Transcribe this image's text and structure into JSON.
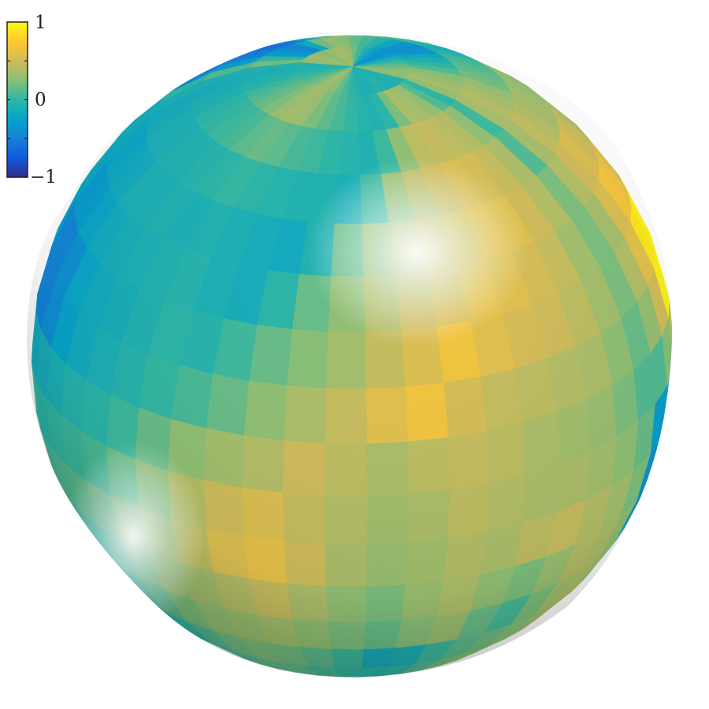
{
  "chart_data": {
    "type": "heatmap",
    "description_type": "3d-surface-sphere",
    "title": "",
    "xlabel": "",
    "ylabel": "",
    "colormap": "parula",
    "colorbar": {
      "location": "top-left",
      "clim": [
        -1,
        1
      ],
      "ticks": [
        1,
        0,
        -1
      ],
      "tick_labels": [
        "1",
        "0",
        "−1"
      ],
      "colors": [
        "#352a87",
        "#0f5cdd",
        "#1481d6",
        "#06a4ca",
        "#2eb7a4",
        "#87bf77",
        "#d1bb59",
        "#fec832",
        "#f9fb0e"
      ]
    },
    "grid": false,
    "surface": {
      "rows": 18,
      "cols": 24,
      "values_note_removed": true,
      "values": [
        [
          0.3,
          0.28,
          0.25,
          0.2,
          0.15,
          0.05,
          -0.05,
          -0.15,
          -0.3,
          -0.4,
          -0.35,
          -0.25,
          -0.1,
          0.05,
          0.2,
          0.3,
          0.35,
          0.35,
          0.3,
          0.25,
          0.3,
          0.35,
          0.3,
          0.3
        ],
        [
          0.3,
          0.35,
          0.3,
          0.25,
          0.1,
          0.0,
          -0.1,
          -0.2,
          -0.35,
          -0.4,
          -0.35,
          -0.2,
          -0.05,
          0.05,
          0.15,
          0.25,
          0.3,
          0.2,
          -0.2,
          -0.45,
          -0.4,
          -0.3,
          0.0,
          0.2
        ],
        [
          0.35,
          0.4,
          0.35,
          0.3,
          0.2,
          0.15,
          0.1,
          0.05,
          -0.05,
          -0.1,
          -0.05,
          0.05,
          0.1,
          0.2,
          0.25,
          0.3,
          0.1,
          -0.3,
          -0.55,
          -0.6,
          -0.55,
          -0.5,
          -0.3,
          0.1
        ],
        [
          0.35,
          0.45,
          0.4,
          0.35,
          0.35,
          0.3,
          0.3,
          0.25,
          0.2,
          0.15,
          0.2,
          0.25,
          0.3,
          0.3,
          0.35,
          0.1,
          -0.35,
          -0.55,
          -0.65,
          -0.75,
          -0.7,
          -0.6,
          -0.45,
          0.0
        ],
        [
          0.4,
          0.5,
          0.55,
          0.5,
          0.45,
          0.35,
          0.35,
          0.3,
          0.35,
          0.3,
          0.35,
          0.4,
          0.45,
          0.3,
          -0.1,
          -0.4,
          -0.55,
          -0.7,
          -0.8,
          -0.85,
          -0.8,
          -0.65,
          -0.5,
          -0.2
        ],
        [
          0.35,
          0.55,
          0.7,
          0.65,
          0.55,
          0.45,
          0.4,
          0.35,
          0.3,
          0.25,
          0.35,
          0.4,
          0.2,
          -0.1,
          -0.3,
          -0.5,
          -0.65,
          -0.75,
          -0.85,
          -0.8,
          -0.7,
          -0.6,
          -0.4,
          -0.2
        ],
        [
          0.4,
          0.6,
          0.9,
          0.95,
          0.8,
          0.55,
          0.45,
          0.4,
          0.3,
          0.2,
          0.25,
          0.1,
          -0.1,
          -0.25,
          -0.4,
          -0.6,
          -0.75,
          -0.95,
          -0.8,
          -0.7,
          -0.65,
          -0.55,
          -0.4,
          -0.2
        ],
        [
          0.3,
          0.5,
          0.95,
          1.0,
          0.85,
          0.6,
          0.45,
          0.35,
          0.25,
          0.15,
          0.05,
          -0.1,
          -0.3,
          -0.45,
          -0.6,
          -0.8,
          -0.95,
          -0.7,
          -0.6,
          -0.55,
          -0.5,
          -0.45,
          -0.3,
          -0.1
        ],
        [
          0.1,
          0.25,
          0.4,
          0.45,
          0.4,
          0.35,
          0.25,
          0.2,
          0.1,
          -0.1,
          -0.3,
          -0.4,
          -0.5,
          -0.65,
          -0.55,
          -0.45,
          -0.55,
          -0.6,
          -0.55,
          -0.45,
          -0.4,
          -0.35,
          -0.2,
          0.0
        ],
        [
          -0.3,
          -0.2,
          0.0,
          0.1,
          0.2,
          0.15,
          0.1,
          0.05,
          -0.1,
          -0.3,
          -0.5,
          -0.65,
          -0.75,
          -0.6,
          -0.5,
          -0.4,
          -0.45,
          -0.55,
          -0.5,
          -0.45,
          -0.45,
          -0.4,
          -0.3,
          -0.1
        ],
        [
          -0.4,
          -0.3,
          -0.1,
          0.0,
          0.05,
          0.0,
          -0.05,
          -0.15,
          -0.3,
          -0.45,
          -0.55,
          -0.75,
          -0.85,
          -0.65,
          -0.45,
          -0.35,
          -0.4,
          -0.5,
          -0.45,
          -0.55,
          -0.6,
          -0.5,
          -0.4,
          -0.2
        ],
        [
          -0.35,
          -0.25,
          -0.1,
          0.0,
          0.1,
          0.15,
          0.1,
          0.0,
          -0.2,
          -0.35,
          -0.4,
          -0.5,
          -0.6,
          -0.45,
          -0.3,
          -0.2,
          -0.35,
          -0.45,
          -0.3,
          -0.2,
          -0.35,
          -0.5,
          -0.45,
          -0.3
        ],
        [
          -0.3,
          -0.2,
          -0.1,
          0.05,
          0.15,
          0.25,
          0.2,
          0.1,
          -0.05,
          -0.2,
          -0.3,
          -0.35,
          -0.4,
          -0.3,
          -0.2,
          -0.1,
          -0.25,
          -0.35,
          -0.1,
          0.05,
          -0.2,
          -0.4,
          -0.45,
          -0.35
        ],
        [
          -0.45,
          -0.4,
          -0.3,
          -0.2,
          -0.05,
          0.1,
          0.2,
          0.25,
          0.15,
          0.0,
          -0.15,
          -0.2,
          -0.15,
          -0.05,
          0.1,
          0.4,
          0.35,
          0.1,
          -0.05,
          -0.15,
          -0.25,
          -0.35,
          -0.45,
          -0.4
        ],
        [
          -0.6,
          -0.7,
          -0.75,
          -0.7,
          -0.55,
          -0.3,
          -0.1,
          0.05,
          0.1,
          0.05,
          -0.05,
          -0.1,
          -0.05,
          0.05,
          0.15,
          0.2,
          0.15,
          0.0,
          -0.15,
          -0.25,
          -0.35,
          -0.45,
          -0.5,
          -0.45
        ],
        [
          -0.55,
          -0.75,
          -0.85,
          -0.8,
          -0.65,
          -0.45,
          -0.25,
          -0.1,
          0.0,
          0.1,
          0.25,
          0.3,
          0.2,
          0.05,
          -0.05,
          -0.1,
          -0.15,
          -0.25,
          -0.35,
          -0.45,
          -0.55,
          -0.6,
          -0.55,
          -0.5
        ],
        [
          -0.45,
          -0.6,
          -0.7,
          -0.65,
          -0.5,
          -0.3,
          -0.1,
          0.1,
          0.3,
          0.4,
          0.35,
          0.25,
          0.15,
          0.0,
          -0.1,
          -0.2,
          -0.3,
          -0.4,
          -0.5,
          -0.6,
          -0.65,
          -0.6,
          -0.55,
          -0.5
        ],
        [
          -0.4,
          -0.45,
          -0.5,
          -0.45,
          -0.4,
          -0.25,
          -0.1,
          0.05,
          0.2,
          0.3,
          0.25,
          0.15,
          0.05,
          -0.05,
          -0.15,
          -0.25,
          -0.35,
          -0.45,
          -0.55,
          -0.6,
          -0.6,
          -0.55,
          -0.5,
          -0.45
        ]
      ]
    }
  }
}
